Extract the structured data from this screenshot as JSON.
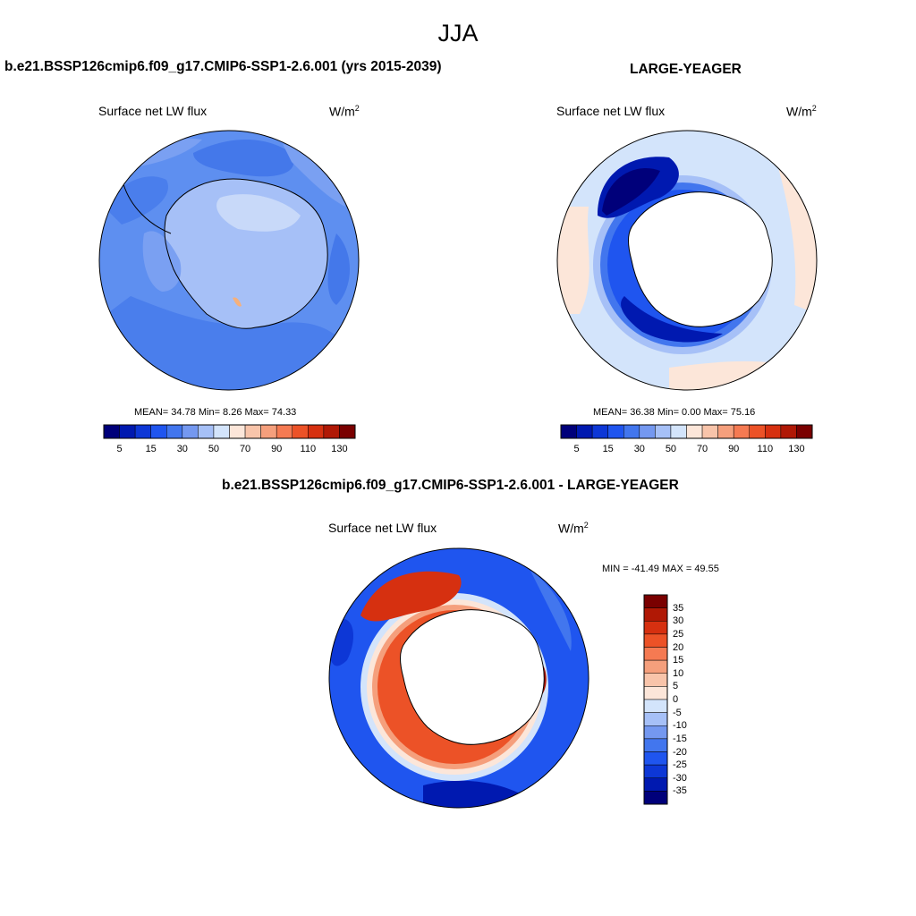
{
  "season_title": "JJA",
  "panels": {
    "model": {
      "title": "b.e21.BSSP126cmip6.f09_g17.CMIP6-SSP1-2.6.001 (yrs 2015-2039)",
      "variable": "Surface net LW flux",
      "units_base": "W/m",
      "units_sup": "2",
      "stats": "MEAN=  34.78  Min=   8.26  Max=  74.33",
      "colorbar_ticks": [
        "5",
        "15",
        "30",
        "50",
        "70",
        "90",
        "110",
        "130"
      ]
    },
    "obs": {
      "title": "LARGE-YEAGER",
      "variable": "Surface net LW flux",
      "units_base": "W/m",
      "units_sup": "2",
      "stats": "MEAN=  36.38  Min=   0.00  Max=  75.16",
      "colorbar_ticks": [
        "5",
        "15",
        "30",
        "50",
        "70",
        "90",
        "110",
        "130"
      ]
    },
    "diff": {
      "title": "b.e21.BSSP126cmip6.f09_g17.CMIP6-SSP1-2.6.001 - LARGE-YEAGER",
      "variable": "Surface net LW flux",
      "units_base": "W/m",
      "units_sup": "2",
      "stats": "MIN = -41.49 MAX =  49.55",
      "colorbar_ticks": [
        "35",
        "30",
        "25",
        "20",
        "15",
        "10",
        "5",
        "0",
        "-5",
        "-10",
        "-15",
        "-20",
        "-25",
        "-30",
        "-35"
      ]
    }
  },
  "palette": [
    "#00007a",
    "#0019b0",
    "#0d37d6",
    "#1f55ef",
    "#4276ee",
    "#7498f0",
    "#a6c0f7",
    "#d3e4fb",
    "#fce6d9",
    "#f8c4aa",
    "#f59f7c",
    "#f57a52",
    "#ec5227",
    "#d63010",
    "#b01805",
    "#7a0000"
  ],
  "colors": {
    "land_mask": "#ffffff",
    "model_ocean": "#5e8ff0",
    "model_light": "#a6c0f7",
    "model_lightest": "#c8d9f9",
    "model_dark": "#4478ea"
  }
}
